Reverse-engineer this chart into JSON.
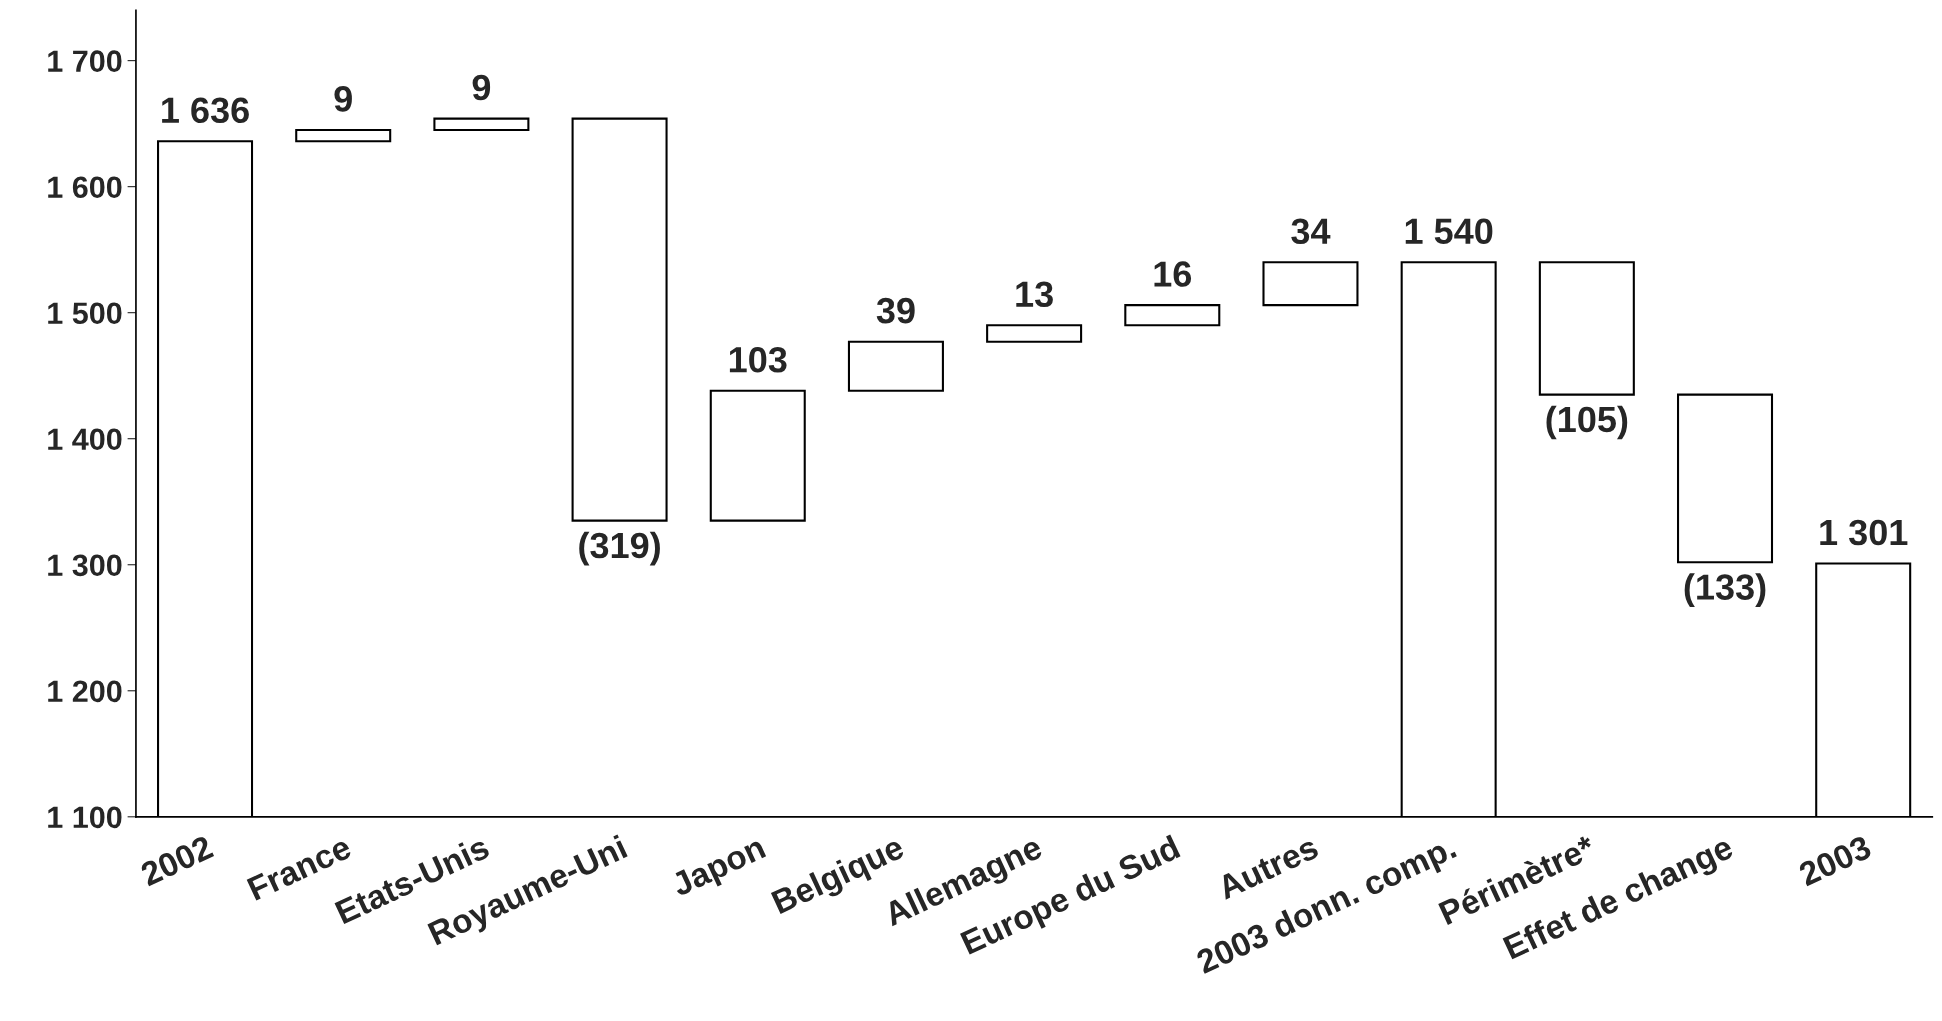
{
  "chart_data": {
    "type": "bar",
    "categories": [
      "2002",
      "France",
      "Etats-Unis",
      "Royaume-Uni",
      "Japon",
      "Belgique",
      "Allemagne",
      "Europe du Sud",
      "Autres",
      "2003 donn. comp.",
      "Périmètre*",
      "Effet de change",
      "2003"
    ],
    "values": [
      1636,
      9,
      9,
      -319,
      103,
      39,
      13,
      16,
      34,
      1540,
      -105,
      -133,
      1301
    ],
    "base": [
      0,
      1636,
      1645,
      1654,
      1335,
      1438,
      1477,
      1490,
      1506,
      0,
      1540,
      1435,
      0
    ],
    "value_labels": [
      "1 636",
      "9",
      "9",
      "(319)",
      "103",
      "39",
      "13",
      "16",
      "34",
      "1 540",
      "(105)",
      "(133)",
      "1 301"
    ],
    "color": "#ffffff",
    "ylim": [
      1100,
      1740
    ],
    "yticks": [
      {
        "value": 1100,
        "label": "1 100"
      },
      {
        "value": 1200,
        "label": "1 200"
      },
      {
        "value": 1300,
        "label": "1 300"
      },
      {
        "value": 1400,
        "label": "1 400"
      },
      {
        "value": 1500,
        "label": "1 500"
      },
      {
        "value": 1600,
        "label": "1 600"
      },
      {
        "value": 1700,
        "label": "1 700"
      }
    ],
    "grid": false
  }
}
